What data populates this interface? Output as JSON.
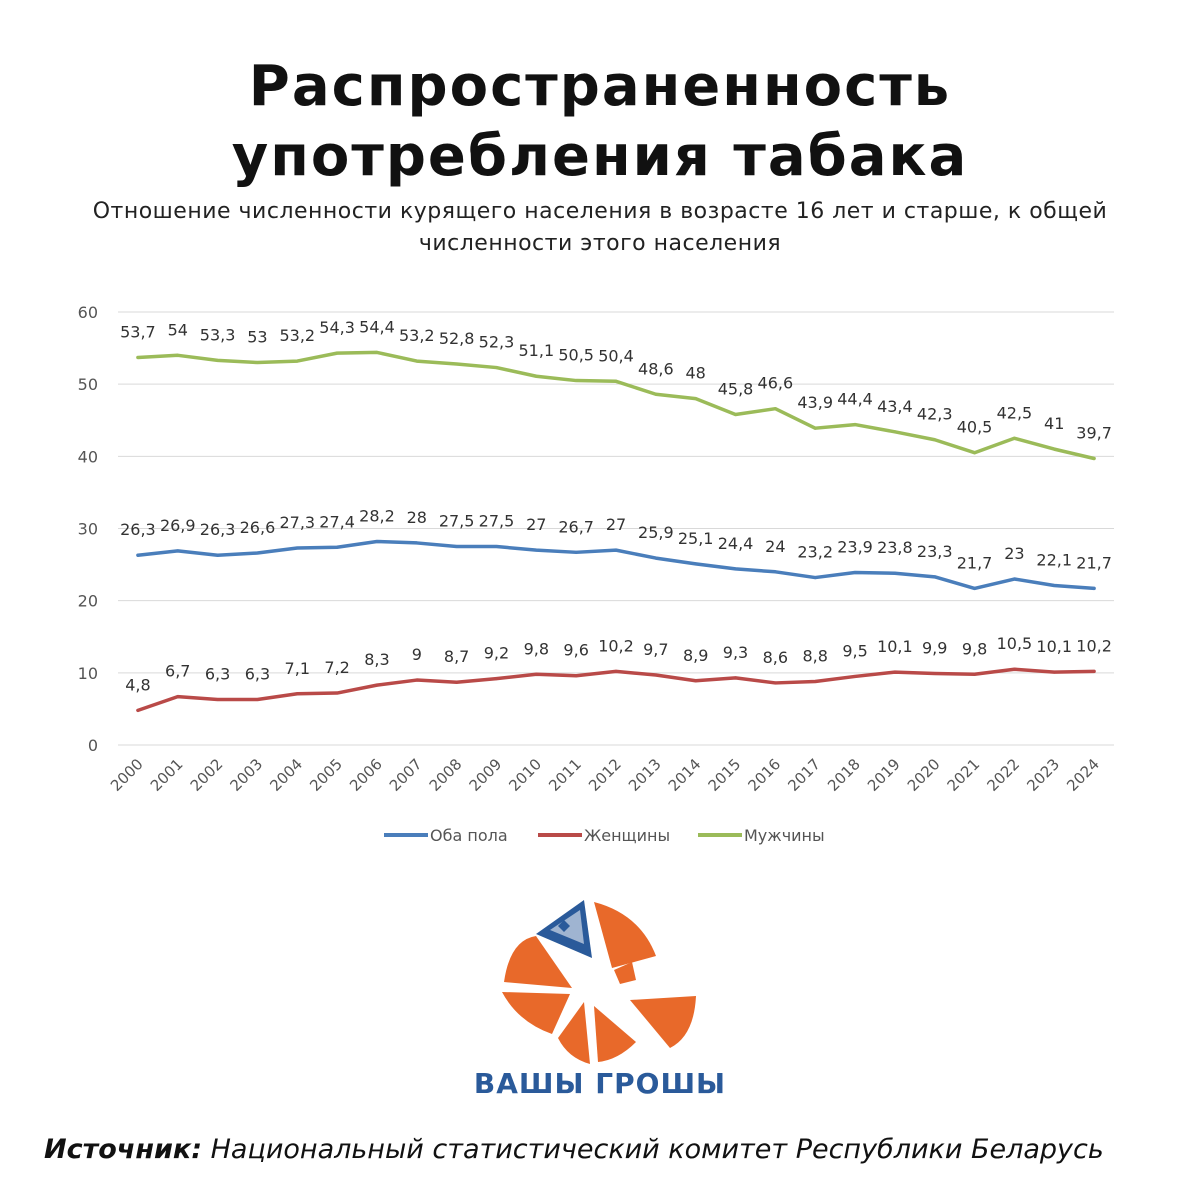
{
  "title": {
    "line1": "Распространенность",
    "line2": "употребления табака"
  },
  "subtitle": {
    "line1": "Отношение численности курящего населения в возрасте 16 лет и старше, к общей",
    "line2": "численности этого населения"
  },
  "chart_data": {
    "type": "line",
    "title": "Распространенность употребления табака",
    "xlabel": "",
    "ylabel": "",
    "ylim": [
      0,
      60
    ],
    "yticks": [
      0,
      10,
      20,
      30,
      40,
      50,
      60
    ],
    "grid": true,
    "legend_position": "bottom",
    "categories": [
      "2000",
      "2001",
      "2002",
      "2003",
      "2004",
      "2005",
      "2006",
      "2007",
      "2008",
      "2009",
      "2010",
      "2011",
      "2012",
      "2013",
      "2014",
      "2015",
      "2016",
      "2017",
      "2018",
      "2019",
      "2020",
      "2021",
      "2022",
      "2023",
      "2024"
    ],
    "series": [
      {
        "name": "Оба пола",
        "color": "#4a7ebb",
        "values": [
          26.3,
          26.9,
          26.3,
          26.6,
          27.3,
          27.4,
          28.2,
          28,
          27.5,
          27.5,
          27,
          26.7,
          27,
          25.9,
          25.1,
          24.4,
          24,
          23.2,
          23.9,
          23.8,
          23.3,
          21.7,
          23,
          22.1,
          21.7
        ],
        "labels": [
          "26,3",
          "26,9",
          "26,3",
          "26,6",
          "27,3",
          "27,4",
          "28,2",
          "28",
          "27,5",
          "27,5",
          "27",
          "26,7",
          "27",
          "25,9",
          "25,1",
          "24,4",
          "24",
          "23,2",
          "23,9",
          "23,8",
          "23,3",
          "21,7",
          "23",
          "22,1",
          "21,7"
        ]
      },
      {
        "name": "Женщины",
        "color": "#b94a48",
        "values": [
          4.8,
          6.7,
          6.3,
          6.3,
          7.1,
          7.2,
          8.3,
          9,
          8.7,
          9.2,
          9.8,
          9.6,
          10.2,
          9.7,
          8.9,
          9.3,
          8.6,
          8.8,
          9.5,
          10.1,
          9.9,
          9.8,
          10.5,
          10.1,
          10.2
        ],
        "labels": [
          "4,8",
          "6,7",
          "6,3",
          "6,3",
          "7,1",
          "7,2",
          "8,3",
          "9",
          "8,7",
          "9,2",
          "9,8",
          "9,6",
          "10,2",
          "9,7",
          "8,9",
          "9,3",
          "8,6",
          "8,8",
          "9,5",
          "10,1",
          "9,9",
          "9,8",
          "10,5",
          "10,1",
          "10,2"
        ]
      },
      {
        "name": "Мужчины",
        "color": "#9bbb59",
        "values": [
          53.7,
          54,
          53.3,
          53,
          53.2,
          54.3,
          54.4,
          53.2,
          52.8,
          52.3,
          51.1,
          50.5,
          50.4,
          48.6,
          48,
          45.8,
          46.6,
          43.9,
          44.4,
          43.4,
          42.3,
          40.5,
          42.5,
          41,
          39.7
        ],
        "labels": [
          "53,7",
          "54",
          "53,3",
          "53",
          "53,2",
          "54,3",
          "54,4",
          "53,2",
          "52,8",
          "52,3",
          "51,1",
          "50,5",
          "50,4",
          "48,6",
          "48",
          "45,8",
          "46,6",
          "43,9",
          "44,4",
          "43,4",
          "42,3",
          "40,5",
          "42,5",
          "41",
          "39,7"
        ]
      }
    ]
  },
  "logo": {
    "icon": "orange-wheel-logo-icon",
    "brand": "ВАШЫ ГРОШЫ",
    "orange": "#e8692a",
    "blue": "#2a5a9a"
  },
  "source": {
    "label": "Источник:",
    "text": " Национальный статистический комитет Республики Беларусь"
  }
}
